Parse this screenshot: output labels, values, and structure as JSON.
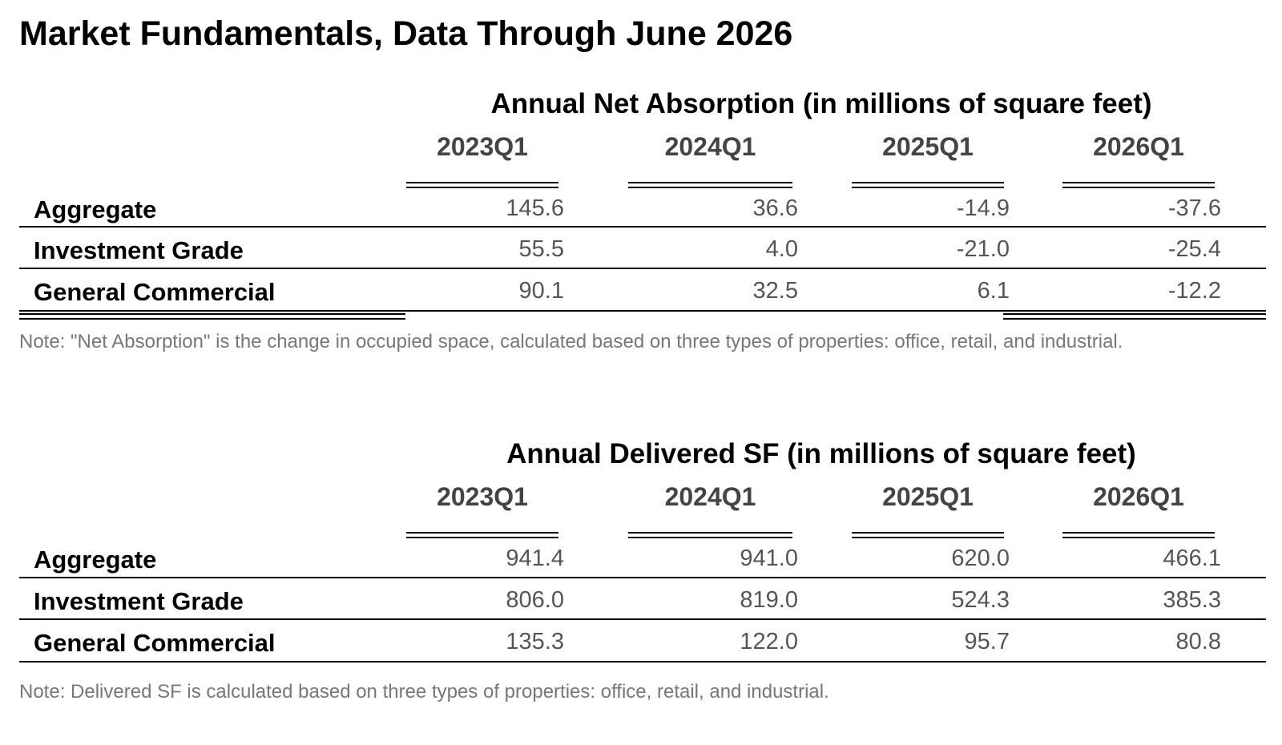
{
  "page": {
    "title": "Market Fundamentals, Data Through June 2026"
  },
  "tables": [
    {
      "title": "Annual Net Absorption (in millions of square feet)",
      "columns": [
        "2023Q1",
        "2024Q1",
        "2025Q1",
        "2026Q1"
      ],
      "rows": [
        {
          "label": "Aggregate",
          "values": [
            "145.6",
            "36.6",
            "-14.9",
            "-37.6"
          ]
        },
        {
          "label": "Investment Grade",
          "values": [
            "55.5",
            "4.0",
            "-21.0",
            "-25.4"
          ]
        },
        {
          "label": "General Commercial",
          "values": [
            "90.1",
            "32.5",
            "6.1",
            "-12.2"
          ]
        }
      ],
      "note": "Note: \"Net Absorption\" is the change in occupied space, calculated based on three types of properties: office, retail, and industrial."
    },
    {
      "title": "Annual Delivered SF (in millions of square feet)",
      "columns": [
        "2023Q1",
        "2024Q1",
        "2025Q1",
        "2026Q1"
      ],
      "rows": [
        {
          "label": "Aggregate",
          "values": [
            "941.4",
            "941.0",
            "620.0",
            "466.1"
          ]
        },
        {
          "label": "Investment Grade",
          "values": [
            "806.0",
            "819.0",
            "524.3",
            "385.3"
          ]
        },
        {
          "label": "General Commercial",
          "values": [
            "135.3",
            "122.0",
            "95.7",
            "80.8"
          ]
        }
      ],
      "note": "Note: Delivered SF is calculated based on three types of properties: office, retail, and industrial."
    }
  ]
}
